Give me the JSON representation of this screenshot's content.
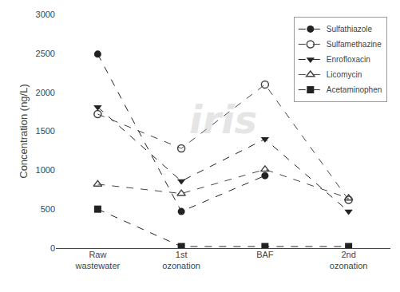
{
  "chart_data": {
    "type": "line",
    "categories": [
      "Raw\nwastewater",
      "1st\nozonation",
      "BAF",
      "2nd\nozonation"
    ],
    "series": [
      {
        "name": "Sulfathiazole",
        "values": [
          2490,
          470,
          930,
          null
        ],
        "color": "#222222",
        "marker": "circle",
        "line_style": "dashed"
      },
      {
        "name": "Sulfamethazine",
        "values": [
          1720,
          1280,
          2100,
          620
        ],
        "color": "#444444",
        "marker": "circle-open",
        "line_style": "dashed"
      },
      {
        "name": "Enrofloxacin",
        "values": [
          1810,
          860,
          1400,
          470
        ],
        "color": "#222222",
        "marker": "triangle-down",
        "line_style": "dashed"
      },
      {
        "name": "Licomycin",
        "values": [
          820,
          700,
          1010,
          640
        ],
        "color": "#444444",
        "marker": "triangle-up-open",
        "line_style": "dashed"
      },
      {
        "name": "Acetaminophen",
        "values": [
          500,
          20,
          20,
          20
        ],
        "color": "#222222",
        "marker": "square",
        "line_style": "dashed"
      }
    ],
    "ylabel": "Concentration (ng/L)",
    "ylim": [
      0,
      3000
    ],
    "yticks": [
      0,
      500,
      1000,
      1500,
      2000,
      2500,
      3000
    ],
    "grid": false,
    "legend": "upper right",
    "annotations": [
      "iris"
    ]
  }
}
